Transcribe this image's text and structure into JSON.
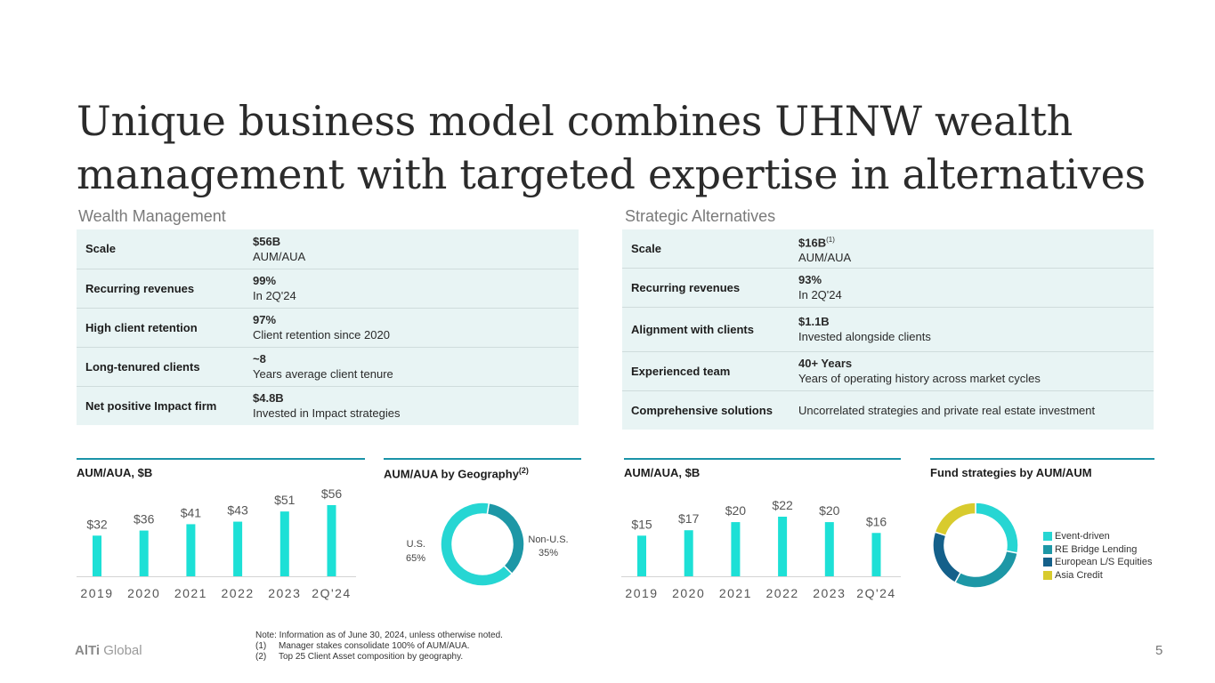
{
  "title": {
    "line1": "Unique business model combines UHNW wealth",
    "line2": "management with targeted expertise in alternatives"
  },
  "wealth": {
    "heading": "Wealth Management",
    "rows": [
      {
        "key": "Scale",
        "value": "$56B",
        "sub": "AUM/AUA"
      },
      {
        "key": "Recurring revenues",
        "value": "99%",
        "sub": "In 2Q'24"
      },
      {
        "key": "High client retention",
        "value": "97%",
        "sub": "Client retention since 2020"
      },
      {
        "key": "Long-tenured clients",
        "value": "~8",
        "sub": "Years average client tenure"
      },
      {
        "key": "Net positive Impact firm",
        "value": "$4.8B",
        "sub": "Invested in Impact strategies"
      }
    ]
  },
  "alternatives": {
    "heading": "Strategic Alternatives",
    "rows": [
      {
        "key": "Scale",
        "value": "$16B",
        "sup": "(1)",
        "sub": "AUM/AUA"
      },
      {
        "key": "Recurring revenues",
        "value": "93%",
        "sub": "In 2Q'24"
      },
      {
        "key": "Alignment with clients",
        "value": "$1.1B",
        "sub": "Invested alongside clients"
      },
      {
        "key": "Experienced team",
        "value": "40+ Years",
        "sub": "Years of operating history across market cycles"
      },
      {
        "key": "Comprehensive solutions",
        "value": "",
        "sub": "Uncorrelated strategies and private real estate investment"
      }
    ]
  },
  "chart_heads": {
    "wm_aum": "AUM/AUA, $B",
    "wm_geo": "AUM/AUA by Geography",
    "wm_geo_sup": "(2)",
    "sa_aum": "AUM/AUA, $B",
    "sa_fund": "Fund strategies by AUM/AUM"
  },
  "colors": {
    "accent": "#1a93a8",
    "bar": "#1de0d6",
    "donut_light": "#26d6d3",
    "donut_mid": "#1d97a6",
    "donut_dark": "#14608a",
    "donut_yellow": "#d8cb2e",
    "table_bg": "#e8f4f4"
  },
  "chart_data": [
    {
      "type": "bar",
      "title": "AUM/AUA, $B",
      "categories": [
        "2019",
        "2020",
        "2021",
        "2022",
        "2023",
        "2Q'24"
      ],
      "values": [
        32,
        36,
        41,
        43,
        51,
        56
      ],
      "labels": [
        "$32",
        "$36",
        "$41",
        "$43",
        "$51",
        "$56"
      ],
      "ylim": [
        0,
        56
      ]
    },
    {
      "type": "pie",
      "title": "AUM/AUA by Geography",
      "labels": [
        "U.S.",
        "Non-U.S."
      ],
      "values": [
        65,
        35
      ],
      "value_labels": [
        "65%",
        "35%"
      ]
    },
    {
      "type": "bar",
      "title": "AUM/AUA, $B",
      "categories": [
        "2019",
        "2020",
        "2021",
        "2022",
        "2023",
        "2Q'24"
      ],
      "values": [
        15,
        17,
        20,
        22,
        20,
        16
      ],
      "labels": [
        "$15",
        "$17",
        "$20",
        "$22",
        "$20",
        "$16"
      ],
      "ylim": [
        0,
        22
      ]
    },
    {
      "type": "pie",
      "title": "Fund strategies by AUM/AUM",
      "labels": [
        "Event-driven",
        "RE Bridge Lending",
        "European L/S Equities",
        "Asia Credit"
      ],
      "values": [
        28,
        30,
        22,
        20
      ]
    }
  ],
  "footer": {
    "logo_bold": "AlTi",
    "logo_rest": "Global",
    "note": "Note: Information as of June 30, 2024, unless otherwise noted.",
    "notes": [
      {
        "num": "(1)",
        "text": "Manager stakes consolidate 100% of AUM/AUA."
      },
      {
        "num": "(2)",
        "text": "Top 25 Client Asset composition by geography."
      }
    ],
    "page": "5"
  }
}
